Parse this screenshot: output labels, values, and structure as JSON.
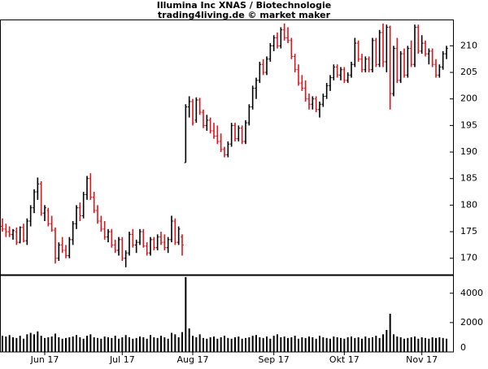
{
  "chart_data": [
    {
      "type": "ohlc",
      "title": "Illumina Inc XNAS / Biotechnologie",
      "subtitle": "trading4living.de © market maker",
      "up_color": "#000000",
      "down_color": "#e0141c",
      "ylim": [
        166.9,
        214.8
      ],
      "yticks": [
        170,
        175,
        180,
        185,
        190,
        195,
        200,
        205,
        210
      ],
      "categories": [
        null,
        null,
        null,
        null,
        null,
        null,
        null,
        null,
        null,
        null,
        null,
        null,
        "Jun 17",
        null,
        null,
        null,
        null,
        null,
        null,
        null,
        null,
        null,
        null,
        null,
        null,
        null,
        null,
        null,
        null,
        null,
        null,
        null,
        null,
        null,
        "Jul 17",
        null,
        null,
        null,
        null,
        null,
        null,
        null,
        null,
        null,
        null,
        null,
        null,
        null,
        null,
        null,
        null,
        null,
        null,
        null,
        "Aug 17",
        null,
        null,
        null,
        null,
        null,
        null,
        null,
        null,
        null,
        null,
        null,
        null,
        null,
        null,
        null,
        null,
        null,
        null,
        null,
        null,
        null,
        null,
        "Sep 17",
        null,
        null,
        null,
        null,
        null,
        null,
        null,
        null,
        null,
        null,
        null,
        null,
        null,
        null,
        null,
        null,
        null,
        null,
        null,
        "Okt 17",
        null,
        null,
        null,
        null,
        null,
        null,
        null,
        null,
        null,
        null,
        null,
        null,
        null,
        null,
        null,
        null,
        null,
        null,
        null,
        null,
        null,
        "Nov 17",
        null,
        null,
        null,
        null,
        null,
        null,
        null
      ],
      "ohlc": [
        [
          176,
          177.5,
          175,
          175.5
        ],
        [
          175.5,
          176.5,
          174,
          175
        ],
        [
          175,
          176,
          174,
          174.5
        ],
        [
          174.5,
          175.5,
          173.5,
          175.2
        ],
        [
          175,
          175.8,
          172.5,
          173
        ],
        [
          173,
          176,
          172.8,
          175.8
        ],
        [
          175.8,
          176.5,
          173,
          173.3
        ],
        [
          173.3,
          177.5,
          172.5,
          177
        ],
        [
          177,
          180,
          176,
          179.5
        ],
        [
          179.5,
          183,
          178.5,
          182.5
        ],
        [
          182.5,
          185.2,
          181,
          184
        ],
        [
          184,
          184.5,
          178,
          178.5
        ],
        [
          178.5,
          180,
          177,
          179.5
        ],
        [
          179,
          179.5,
          176,
          176.5
        ],
        [
          176.5,
          178,
          175,
          175.3
        ],
        [
          175.3,
          175.8,
          169,
          170
        ],
        [
          170,
          173,
          169.5,
          172.5
        ],
        [
          172.5,
          174,
          171,
          171.5
        ],
        [
          171.5,
          172.5,
          170,
          170.5
        ],
        [
          170.5,
          174,
          170,
          173.5
        ],
        [
          173.5,
          177,
          172.5,
          176.5
        ],
        [
          176.5,
          180,
          175.5,
          179.5
        ],
        [
          179.5,
          180.5,
          177,
          178
        ],
        [
          178,
          182.5,
          177.5,
          182
        ],
        [
          182,
          185.5,
          181,
          185
        ],
        [
          185,
          186,
          181,
          181.5
        ],
        [
          181.5,
          182.5,
          178.5,
          179
        ],
        [
          179,
          180,
          176.5,
          177
        ],
        [
          177,
          178,
          175,
          175.5
        ],
        [
          175.5,
          177,
          173.5,
          174
        ],
        [
          174,
          175.5,
          173,
          175
        ],
        [
          175,
          175.5,
          172,
          172.5
        ],
        [
          172.5,
          173.5,
          171,
          171.5
        ],
        [
          171.5,
          174,
          170.5,
          173.5
        ],
        [
          173.5,
          174,
          169.5,
          170
        ],
        [
          170,
          171.5,
          168.3,
          171
        ],
        [
          171,
          175,
          170.5,
          174.5
        ],
        [
          174.5,
          175.5,
          172,
          172.5
        ],
        [
          172.5,
          173.5,
          171,
          173
        ],
        [
          173,
          175.5,
          172.5,
          175
        ],
        [
          175,
          175.5,
          172,
          172.3
        ],
        [
          172.3,
          173,
          170.5,
          171
        ],
        [
          171,
          174,
          170.5,
          173.5
        ],
        [
          173.5,
          174,
          171.5,
          172
        ],
        [
          172,
          174.5,
          171.5,
          174
        ],
        [
          174,
          175,
          172.5,
          173
        ],
        [
          173,
          174.5,
          171.5,
          172
        ],
        [
          172,
          174,
          171,
          173.5
        ],
        [
          173.5,
          178,
          173,
          177
        ],
        [
          177,
          177.5,
          172.5,
          173
        ],
        [
          173,
          176,
          172.5,
          175.5
        ],
        [
          174,
          174.5,
          170.5,
          172.5
        ],
        [
          188,
          199,
          188,
          198.5
        ],
        [
          198.5,
          200.5,
          196.5,
          199.5
        ],
        [
          199.5,
          200,
          195,
          195.5
        ],
        [
          196,
          200.3,
          195.5,
          199.8
        ],
        [
          199.8,
          200.2,
          197,
          197.5
        ],
        [
          197.5,
          198,
          194.5,
          195
        ],
        [
          195,
          197,
          194,
          196
        ],
        [
          196,
          196.5,
          193.5,
          194
        ],
        [
          194,
          195.5,
          192.5,
          193
        ],
        [
          193,
          195,
          191.5,
          192
        ],
        [
          192,
          193.5,
          190,
          190.5
        ],
        [
          190.5,
          191,
          189,
          189.5
        ],
        [
          189.5,
          192,
          189,
          191.5
        ],
        [
          191.5,
          195.5,
          191,
          195
        ],
        [
          195,
          195.5,
          192,
          192.5
        ],
        [
          192.5,
          195,
          192,
          194.5
        ],
        [
          194.5,
          195,
          191.5,
          192
        ],
        [
          192,
          196,
          191.5,
          195.5
        ],
        [
          195.5,
          199,
          195,
          198.5
        ],
        [
          198.5,
          202.5,
          198,
          202
        ],
        [
          202,
          204,
          200,
          203.5
        ],
        [
          203.5,
          207,
          203,
          206.5
        ],
        [
          206.5,
          207.5,
          204.5,
          205
        ],
        [
          205,
          208,
          204.5,
          207.5
        ],
        [
          207.5,
          210.5,
          207,
          210
        ],
        [
          210,
          212,
          209,
          211.5
        ],
        [
          211.5,
          212.5,
          209.5,
          210
        ],
        [
          210,
          213.5,
          209.5,
          213
        ],
        [
          213,
          214.2,
          211,
          211.5
        ],
        [
          211.5,
          213.5,
          210.5,
          211
        ],
        [
          211,
          211.5,
          207.5,
          208
        ],
        [
          208,
          208.5,
          205,
          205.5
        ],
        [
          205.5,
          206.5,
          202.5,
          203
        ],
        [
          203,
          204.5,
          201.5,
          202
        ],
        [
          202,
          203.5,
          199.5,
          200
        ],
        [
          200,
          201,
          198,
          199
        ],
        [
          199,
          200.5,
          198,
          200
        ],
        [
          200,
          200.5,
          197.5,
          198
        ],
        [
          198,
          199.5,
          196.5,
          199
        ],
        [
          199,
          201,
          198.5,
          200.5
        ],
        [
          200.5,
          203,
          200,
          202.5
        ],
        [
          202.5,
          204.5,
          201.5,
          204
        ],
        [
          204,
          206.5,
          203.5,
          206
        ],
        [
          206,
          206.5,
          204,
          204.5
        ],
        [
          204.5,
          206,
          203.5,
          205.5
        ],
        [
          205.5,
          206,
          203,
          203.5
        ],
        [
          203.5,
          205,
          203,
          204.5
        ],
        [
          204.5,
          207,
          204,
          206.5
        ],
        [
          206.5,
          211.5,
          206,
          210.5
        ],
        [
          210.5,
          211,
          207,
          207.5
        ],
        [
          207.5,
          208.5,
          205,
          205.5
        ],
        [
          205.5,
          208,
          205,
          207.5
        ],
        [
          207.5,
          208,
          205,
          205.5
        ],
        [
          205.5,
          211.5,
          205,
          211
        ],
        [
          211,
          211.5,
          206,
          206.5
        ],
        [
          206.5,
          213,
          206,
          212.5
        ],
        [
          212.5,
          214.2,
          206,
          207
        ],
        [
          207,
          214,
          205,
          213.5
        ],
        [
          213.5,
          213.8,
          198,
          201
        ],
        [
          201,
          210,
          200.5,
          209.5
        ],
        [
          209.5,
          211.5,
          203,
          203.5
        ],
        [
          203.5,
          209,
          203,
          208.5
        ],
        [
          208.5,
          209.5,
          204,
          204.5
        ],
        [
          204.5,
          210,
          204,
          209.5
        ],
        [
          209.5,
          211,
          206,
          206.5
        ],
        [
          206.5,
          214,
          206,
          213.5
        ],
        [
          213.5,
          214,
          208.5,
          209
        ],
        [
          209,
          212,
          208.5,
          210.5
        ],
        [
          210.5,
          211,
          208,
          208.5
        ],
        [
          208.5,
          209.5,
          206.5,
          209
        ],
        [
          209,
          209.5,
          206,
          206.5
        ],
        [
          206.5,
          207.5,
          204,
          204.5
        ],
        [
          204.5,
          206.5,
          204,
          206
        ],
        [
          206,
          209,
          205.5,
          208.5
        ],
        [
          208.5,
          210,
          207.5,
          209.5
        ]
      ]
    },
    {
      "type": "bar",
      "color": "#000000",
      "ylim": [
        0,
        5150
      ],
      "yticks": [
        0,
        2000,
        4000
      ],
      "values": [
        1100,
        1050,
        1150,
        1000,
        950,
        1100,
        900,
        1200,
        1300,
        1200,
        1400,
        1100,
        950,
        1000,
        1050,
        1250,
        1000,
        900,
        950,
        1000,
        1050,
        1150,
        1000,
        900,
        1100,
        1200,
        1000,
        950,
        900,
        1050,
        1000,
        950,
        1100,
        900,
        1000,
        1150,
        1000,
        900,
        950,
        1050,
        1000,
        900,
        1150,
        1000,
        950,
        1100,
        1000,
        900,
        1300,
        1200,
        1000,
        1350,
        5100,
        1600,
        1100,
        1000,
        1200,
        950,
        900,
        1000,
        1050,
        900,
        1000,
        1100,
        950,
        900,
        1000,
        1050,
        900,
        950,
        1000,
        1100,
        1150,
        1000,
        950,
        1050,
        900,
        1100,
        1200,
        1000,
        1050,
        950,
        1000,
        1100,
        900,
        1000,
        950,
        1050,
        1000,
        900,
        1100,
        1000,
        950,
        900,
        1050,
        1000,
        950,
        900,
        1000,
        1050,
        950,
        1000,
        900,
        1050,
        950,
        1000,
        1100,
        950,
        1200,
        1500,
        2600,
        1200,
        1050,
        1000,
        900,
        950,
        1000,
        1050,
        900,
        1000,
        950,
        900,
        1000,
        950,
        1000,
        950,
        900
      ]
    }
  ]
}
